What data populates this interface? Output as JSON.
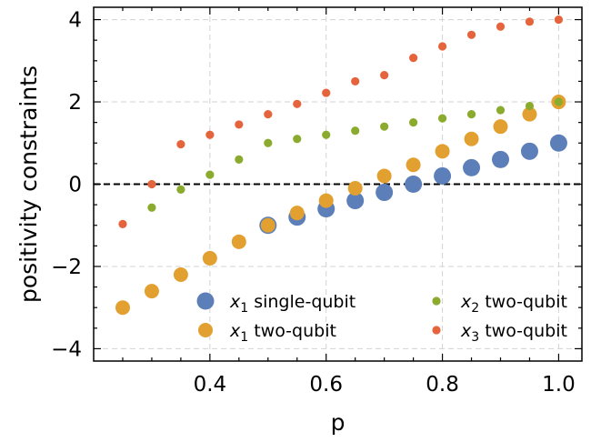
{
  "chart_data": {
    "type": "scatter",
    "xlabel": "p",
    "ylabel": "positivity constraints",
    "xlim": [
      0.2,
      1.04
    ],
    "ylim": [
      -4.3,
      4.3
    ],
    "xticks": [
      "0.4",
      "0.6",
      "0.8",
      "1.0"
    ],
    "xtick_values": [
      0.4,
      0.6,
      0.8,
      1.0
    ],
    "yticks": [
      "−4",
      "−2",
      "0",
      "2",
      "4"
    ],
    "ytick_values": [
      -4,
      -2,
      0,
      2,
      4
    ],
    "grid": true,
    "reference_line": {
      "y": 0,
      "style": "dashed"
    },
    "legend_position": "lower-right",
    "series": [
      {
        "name": "x₁ single-qubit",
        "label_var": "x",
        "label_sub": "1",
        "label_rest": " single-qubit",
        "color": "#5d7fb9",
        "marker_size": "large",
        "x": [
          0.5,
          0.55,
          0.6,
          0.65,
          0.7,
          0.75,
          0.8,
          0.85,
          0.9,
          0.95,
          1.0
        ],
        "y": [
          -1.0,
          -0.8,
          -0.6,
          -0.4,
          -0.2,
          0.0,
          0.2,
          0.4,
          0.6,
          0.8,
          1.0
        ]
      },
      {
        "name": "x₁ two-qubit",
        "label_var": "x",
        "label_sub": "1",
        "label_rest": " two-qubit",
        "color": "#e2a030",
        "marker_size": "medium",
        "x": [
          0.25,
          0.3,
          0.35,
          0.4,
          0.45,
          0.5,
          0.55,
          0.6,
          0.65,
          0.7,
          0.75,
          0.8,
          0.85,
          0.9,
          0.95,
          1.0
        ],
        "y": [
          -3.0,
          -2.6,
          -2.2,
          -1.8,
          -1.4,
          -1.0,
          -0.7,
          -0.4,
          -0.1,
          0.2,
          0.47,
          0.8,
          1.1,
          1.4,
          1.7,
          2.0
        ]
      },
      {
        "name": "x₂ two-qubit",
        "label_var": "x",
        "label_sub": "2",
        "label_rest": " two-qubit",
        "color": "#8aab2e",
        "marker_size": "small",
        "x": [
          0.3,
          0.35,
          0.4,
          0.45,
          0.5,
          0.55,
          0.6,
          0.65,
          0.7,
          0.75,
          0.8,
          0.85,
          0.9,
          0.95,
          1.0
        ],
        "y": [
          -0.57,
          -0.13,
          0.23,
          0.6,
          1.0,
          1.1,
          1.2,
          1.3,
          1.4,
          1.5,
          1.6,
          1.7,
          1.8,
          1.9,
          2.0
        ]
      },
      {
        "name": "x₃ two-qubit",
        "label_var": "x",
        "label_sub": "3",
        "label_rest": " two-qubit",
        "color": "#e6643c",
        "marker_size": "small",
        "x": [
          0.25,
          0.3,
          0.35,
          0.4,
          0.45,
          0.5,
          0.55,
          0.6,
          0.65,
          0.7,
          0.75,
          0.8,
          0.85,
          0.9,
          0.95,
          1.0
        ],
        "y": [
          -0.97,
          0.0,
          0.97,
          1.2,
          1.45,
          1.7,
          1.95,
          2.22,
          2.5,
          2.65,
          3.07,
          3.35,
          3.63,
          3.83,
          3.95,
          4.0
        ]
      }
    ]
  }
}
